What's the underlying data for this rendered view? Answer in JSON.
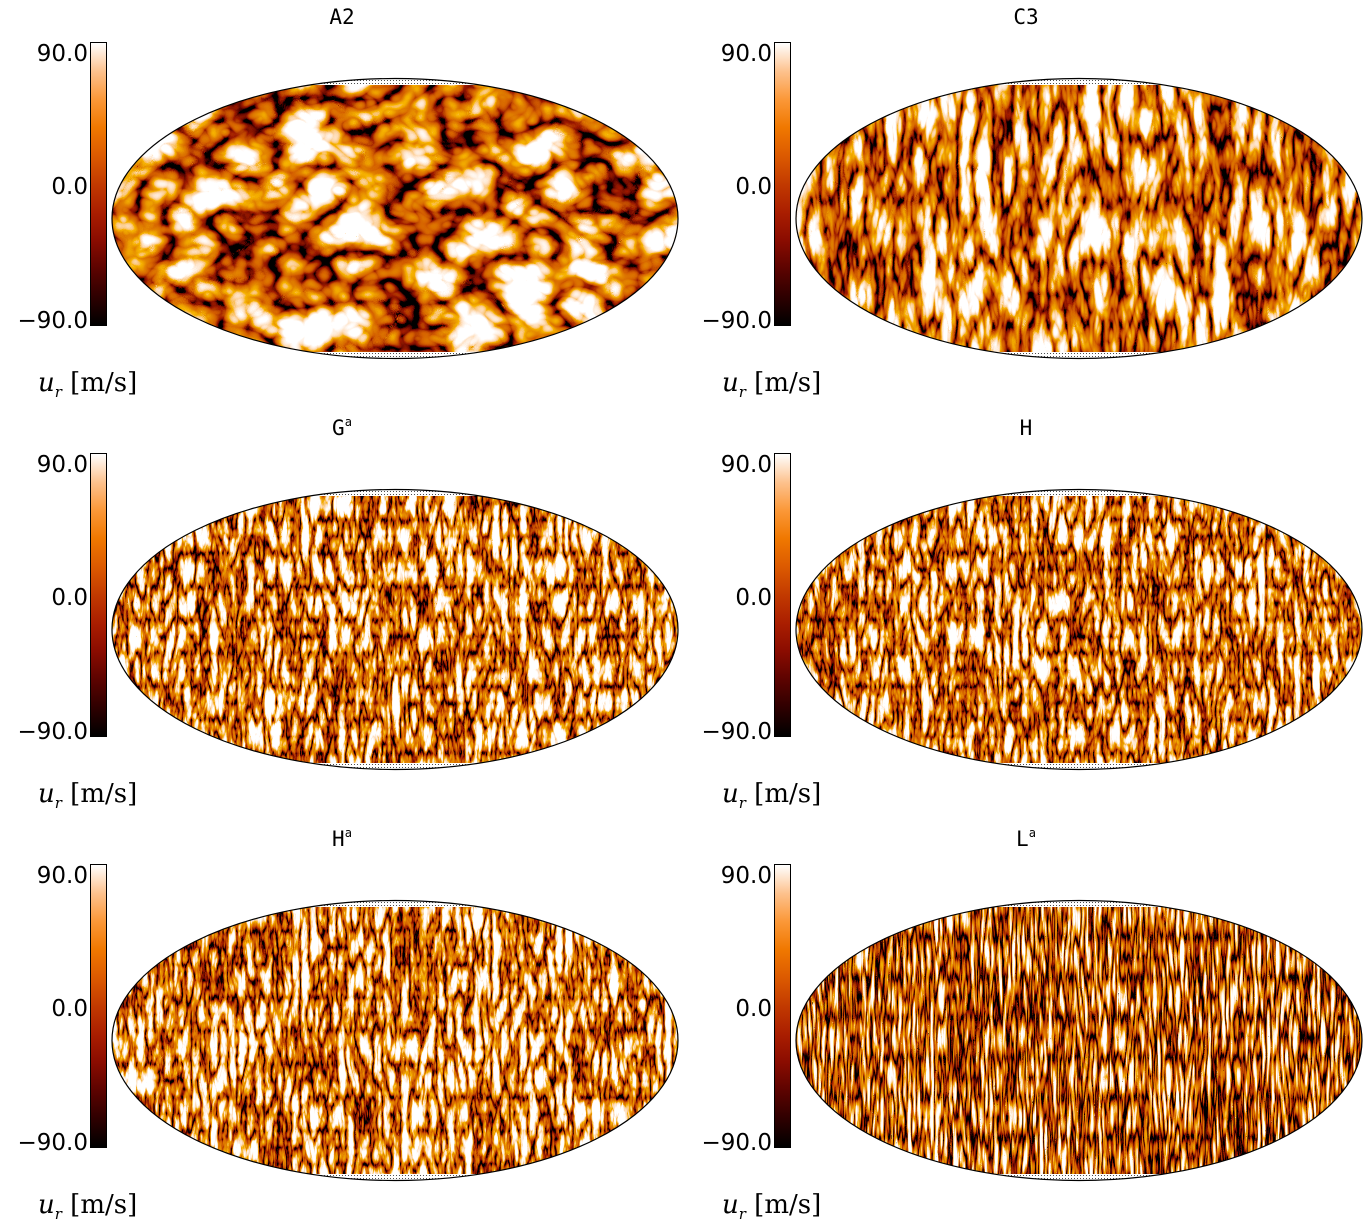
{
  "panels": [
    {
      "title": "A2",
      "sup": "",
      "colorbar": {
        "max": "90.0",
        "mid": "0.0",
        "min": "−90.0"
      },
      "unit_var": "u",
      "unit_sub": "r",
      "unit_text": " [m/s]",
      "pattern": "coarse-cells"
    },
    {
      "title": "C3",
      "sup": "",
      "colorbar": {
        "max": "90.0",
        "mid": "0.0",
        "min": "−90.0"
      },
      "unit_var": "u",
      "unit_sub": "r",
      "unit_text": " [m/s]",
      "pattern": "medium-bands"
    },
    {
      "title": "G",
      "sup": "a",
      "colorbar": {
        "max": "90.0",
        "mid": "0.0",
        "min": "−90.0"
      },
      "unit_var": "u",
      "unit_sub": "r",
      "unit_text": " [m/s]",
      "pattern": "fine-bands"
    },
    {
      "title": "H",
      "sup": "",
      "colorbar": {
        "max": "90.0",
        "mid": "0.0",
        "min": "−90.0"
      },
      "unit_var": "u",
      "unit_sub": "r",
      "unit_text": " [m/s]",
      "pattern": "fine-bands"
    },
    {
      "title": "H",
      "sup": "a",
      "colorbar": {
        "max": "90.0",
        "mid": "0.0",
        "min": "−90.0"
      },
      "unit_var": "u",
      "unit_sub": "r",
      "unit_text": " [m/s]",
      "pattern": "fine-bands"
    },
    {
      "title": "L",
      "sup": "a",
      "colorbar": {
        "max": "90.0",
        "mid": "0.0",
        "min": "−90.0"
      },
      "unit_var": "u",
      "unit_sub": "r",
      "unit_text": " [m/s]",
      "pattern": "very-fine-bands"
    }
  ],
  "colormap": [
    "#000000",
    "#5c0300",
    "#aa1e00",
    "#c23a00",
    "#f07800",
    "#fdc28e",
    "#ffffff"
  ]
}
